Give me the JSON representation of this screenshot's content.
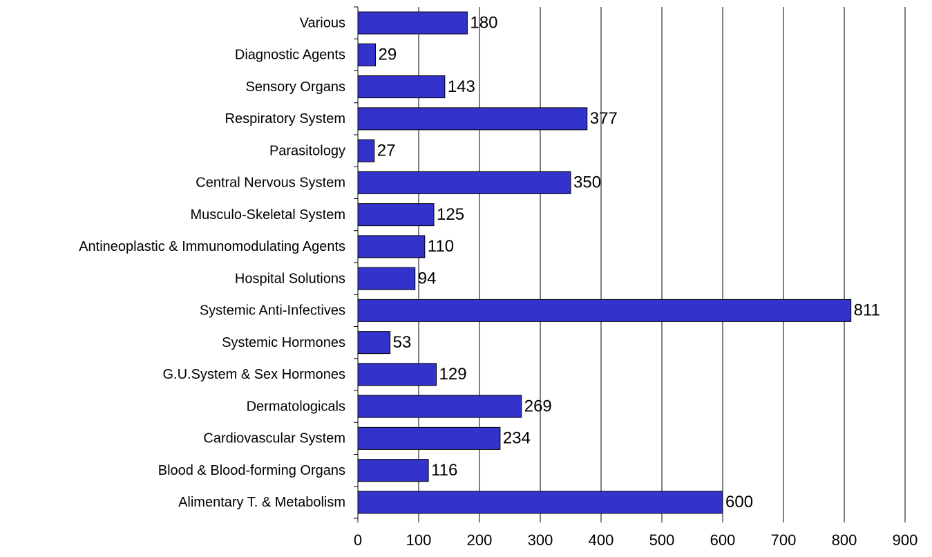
{
  "chart_data": {
    "type": "barh",
    "categories": [
      "Various",
      "Diagnostic Agents",
      "Sensory Organs",
      "Respiratory System",
      "Parasitology",
      "Central Nervous System",
      "Musculo-Skeletal System",
      "Antineoplastic & Immunomodulating Agents",
      "Hospital Solutions",
      "Systemic Anti-Infectives",
      "Systemic Hormones",
      "G.U.System & Sex Hormones",
      "Dermatologicals",
      "Cardiovascular System",
      "Blood & Blood-forming Organs",
      "Alimentary T. & Metabolism"
    ],
    "values": [
      180,
      29,
      143,
      377,
      27,
      350,
      125,
      110,
      94,
      811,
      53,
      129,
      269,
      234,
      116,
      600
    ],
    "color": "#3333cc",
    "xlim": [
      0,
      900
    ],
    "xticks": [
      0,
      100,
      200,
      300,
      400,
      500,
      600,
      700,
      800,
      900
    ],
    "grid": true
  }
}
